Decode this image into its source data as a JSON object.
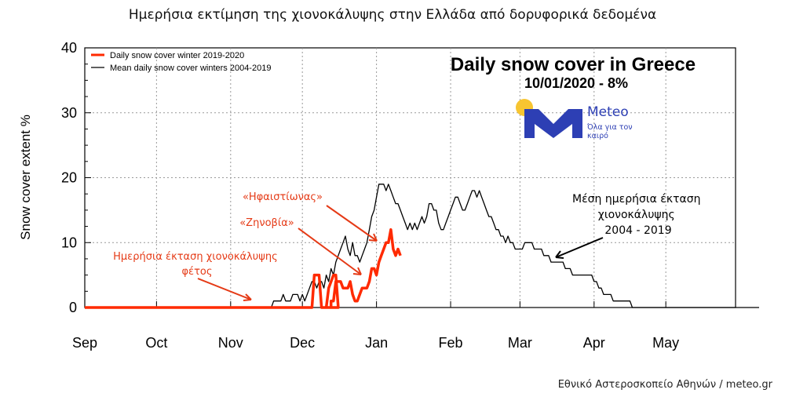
{
  "page_title": "Ημερήσια εκτίμηση της χιονοκάλυψης στην Ελλάδα από δορυφορικά δεδομένα",
  "credit": "Εθνικό Αστεροσκοπείο Αθηνών / meteo.gr",
  "logo": {
    "name": "Meteo",
    "tagline": "Όλα για τον καιρό",
    "colors": {
      "sun": "#f7c531",
      "mark": "#2d3fb4"
    }
  },
  "chart_data": {
    "type": "line",
    "title": "Daily snow cover in Greece",
    "subtitle": "10/01/2020 - 8%",
    "ylabel": "Snow cover extent %",
    "xlabel": "",
    "ylim": [
      0,
      40
    ],
    "yticks": [
      0,
      10,
      20,
      30,
      40
    ],
    "xlim_day": [
      0,
      282
    ],
    "x_ticks": [
      {
        "label": "Sep",
        "day": 0
      },
      {
        "label": "Oct",
        "day": 30
      },
      {
        "label": "Nov",
        "day": 61
      },
      {
        "label": "Dec",
        "day": 91
      },
      {
        "label": "Jan",
        "day": 122
      },
      {
        "label": "Feb",
        "day": 153
      },
      {
        "label": "Mar",
        "day": 182
      },
      {
        "label": "Apr",
        "day": 213
      },
      {
        "label": "May",
        "day": 243
      }
    ],
    "grid": true,
    "legend_position": "top-left",
    "series": [
      {
        "name": "Daily snow cover winter 2019-2020",
        "color": "#ff2a00",
        "points": [
          [
            0,
            0
          ],
          [
            91,
            0
          ],
          [
            95,
            0
          ],
          [
            96,
            5
          ],
          [
            98,
            5
          ],
          [
            99,
            0
          ],
          [
            101,
            0
          ],
          [
            102,
            3
          ],
          [
            104,
            5
          ],
          [
            105,
            5
          ],
          [
            106,
            0
          ],
          [
            100,
            0
          ],
          [
            103,
            0
          ],
          [
            103,
            1
          ],
          [
            104,
            1
          ],
          [
            105,
            4
          ],
          [
            107,
            4
          ],
          [
            108,
            3
          ],
          [
            110,
            3
          ],
          [
            111,
            4
          ],
          [
            112,
            2
          ],
          [
            113,
            1
          ],
          [
            114,
            1
          ],
          [
            116,
            3
          ],
          [
            117,
            3
          ],
          [
            118,
            3
          ],
          [
            119,
            4
          ],
          [
            120,
            6
          ],
          [
            121,
            6
          ],
          [
            122,
            5
          ],
          [
            123,
            7
          ],
          [
            124,
            8
          ],
          [
            125,
            9
          ],
          [
            126,
            10
          ],
          [
            127,
            10
          ],
          [
            128,
            12
          ],
          [
            129,
            9
          ],
          [
            130,
            8
          ],
          [
            131,
            9
          ],
          [
            132,
            8
          ]
        ]
      },
      {
        "name": "Mean daily snow cover winters 2004-2019",
        "color": "#000000",
        "points": [
          [
            0,
            0
          ],
          [
            78,
            0
          ],
          [
            79,
            1
          ],
          [
            82,
            1
          ],
          [
            83,
            2
          ],
          [
            84,
            1
          ],
          [
            86,
            1
          ],
          [
            87,
            2
          ],
          [
            89,
            2
          ],
          [
            90,
            1
          ],
          [
            91,
            2
          ],
          [
            92,
            1
          ],
          [
            93,
            2
          ],
          [
            94,
            3
          ],
          [
            95,
            4
          ],
          [
            96,
            4
          ],
          [
            97,
            3
          ],
          [
            98,
            4
          ],
          [
            99,
            4
          ],
          [
            100,
            3
          ],
          [
            101,
            5
          ],
          [
            102,
            4
          ],
          [
            103,
            6
          ],
          [
            104,
            5
          ],
          [
            105,
            7
          ],
          [
            106,
            8
          ],
          [
            107,
            9
          ],
          [
            108,
            10
          ],
          [
            109,
            11
          ],
          [
            110,
            9
          ],
          [
            111,
            8
          ],
          [
            112,
            10
          ],
          [
            113,
            8
          ],
          [
            114,
            8
          ],
          [
            115,
            7
          ],
          [
            116,
            8
          ],
          [
            117,
            9
          ],
          [
            118,
            10
          ],
          [
            119,
            12
          ],
          [
            120,
            14
          ],
          [
            121,
            15
          ],
          [
            122,
            17
          ],
          [
            123,
            19
          ],
          [
            124,
            19
          ],
          [
            125,
            19
          ],
          [
            126,
            18
          ],
          [
            127,
            19
          ],
          [
            128,
            18
          ],
          [
            129,
            17
          ],
          [
            130,
            16
          ],
          [
            131,
            16
          ],
          [
            132,
            15
          ],
          [
            133,
            14
          ],
          [
            134,
            13
          ],
          [
            135,
            12
          ],
          [
            136,
            13
          ],
          [
            137,
            12
          ],
          [
            138,
            13
          ],
          [
            139,
            12
          ],
          [
            140,
            13
          ],
          [
            141,
            14
          ],
          [
            142,
            13
          ],
          [
            143,
            14
          ],
          [
            144,
            16
          ],
          [
            145,
            16
          ],
          [
            146,
            15
          ],
          [
            147,
            15
          ],
          [
            148,
            13
          ],
          [
            149,
            12
          ],
          [
            150,
            12
          ],
          [
            151,
            13
          ],
          [
            152,
            14
          ],
          [
            153,
            15
          ],
          [
            154,
            16
          ],
          [
            155,
            17
          ],
          [
            156,
            17
          ],
          [
            157,
            16
          ],
          [
            158,
            15
          ],
          [
            159,
            15
          ],
          [
            160,
            16
          ],
          [
            161,
            17
          ],
          [
            162,
            18
          ],
          [
            163,
            18
          ],
          [
            164,
            17
          ],
          [
            165,
            18
          ],
          [
            166,
            17
          ],
          [
            167,
            16
          ],
          [
            168,
            15
          ],
          [
            169,
            14
          ],
          [
            170,
            14
          ],
          [
            171,
            13
          ],
          [
            172,
            12
          ],
          [
            173,
            12
          ],
          [
            174,
            11
          ],
          [
            175,
            11
          ],
          [
            176,
            10
          ],
          [
            177,
            11
          ],
          [
            178,
            10
          ],
          [
            179,
            10
          ],
          [
            180,
            9
          ],
          [
            181,
            9
          ],
          [
            183,
            9
          ],
          [
            184,
            10
          ],
          [
            185,
            10
          ],
          [
            187,
            10
          ],
          [
            188,
            9
          ],
          [
            191,
            9
          ],
          [
            192,
            8
          ],
          [
            194,
            8
          ],
          [
            195,
            7
          ],
          [
            200,
            7
          ],
          [
            201,
            6
          ],
          [
            203,
            6
          ],
          [
            204,
            5
          ],
          [
            212,
            5
          ],
          [
            213,
            4
          ],
          [
            214,
            4
          ],
          [
            215,
            3
          ],
          [
            216,
            3
          ],
          [
            217,
            2
          ],
          [
            220,
            2
          ],
          [
            221,
            1
          ],
          [
            224,
            1
          ],
          [
            225,
            1
          ],
          [
            228,
            1
          ],
          [
            229,
            0
          ],
          [
            282,
            0
          ]
        ]
      }
    ],
    "annotations": [
      {
        "text": "«Ηφαιστίωνας»",
        "color": "#e53a16"
      },
      {
        "text": "«Ζηνοβία»",
        "color": "#e53a16"
      },
      {
        "text": "Ημερήσια έκταση χιονοκάλυψης φέτος",
        "color": "#e53a16"
      },
      {
        "text": "Μέση ημερήσια έκταση χιονοκάλυψης 2004 - 2019",
        "color": "#000000"
      }
    ]
  }
}
